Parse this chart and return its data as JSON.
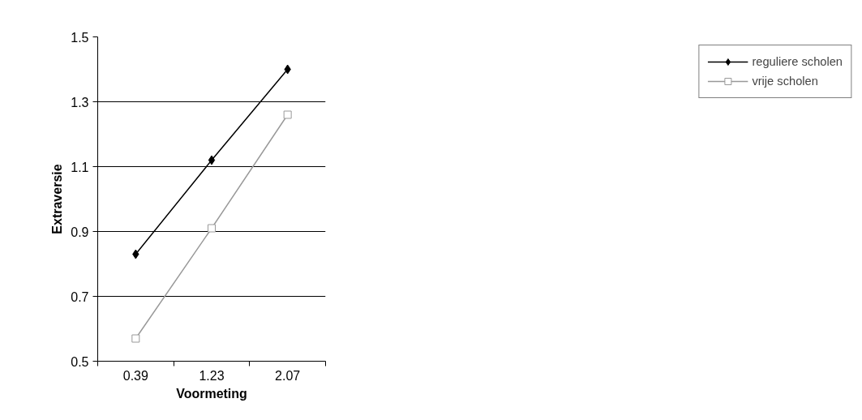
{
  "chart_data": {
    "type": "line",
    "xlabel": "Voormeting",
    "ylabel": "Extraversie",
    "categories": [
      "0.39",
      "1.23",
      "2.07"
    ],
    "series": [
      {
        "name": "reguliere scholen",
        "color": "#000000",
        "marker": "diamond",
        "values": [
          0.83,
          1.12,
          1.4
        ]
      },
      {
        "name": "vrije scholen",
        "color": "#999999",
        "marker": "square",
        "values": [
          0.57,
          0.91,
          1.26
        ]
      }
    ],
    "ylim": [
      0.5,
      1.5
    ],
    "yticks": [
      0.5,
      0.7,
      0.9,
      1.1,
      1.3,
      1.5
    ],
    "grid": "y",
    "legend": "right"
  }
}
